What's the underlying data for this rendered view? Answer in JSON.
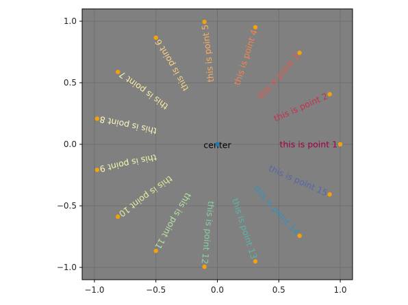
{
  "chart_data": {
    "type": "scatter",
    "xlim": [
      -1.1,
      1.1
    ],
    "ylim": [
      -1.1,
      1.1
    ],
    "grid": true,
    "background": "#808080",
    "point_color": "#f5a20a",
    "center_point_color": "#1f77b4",
    "x_ticks": [
      -1.0,
      -0.5,
      0.0,
      0.5,
      1.0
    ],
    "y_ticks": [
      -1.0,
      -0.5,
      0.0,
      0.5,
      1.0
    ],
    "x_tick_labels": [
      "−1.0",
      "−0.5",
      "0.0",
      "0.5",
      "1.0"
    ],
    "y_tick_labels": [
      "−1.0",
      "−0.5",
      "0.0",
      "0.5",
      "1.0"
    ],
    "center": {
      "x": 0,
      "y": 0,
      "label": "center",
      "color": "#000000"
    },
    "points": [
      {
        "x": 1.0,
        "y": 0.0,
        "label": "this is point 1",
        "color": "#9e0142"
      },
      {
        "x": 0.914,
        "y": 0.407,
        "label": "this is point 2",
        "color": "#c6304b"
      },
      {
        "x": 0.669,
        "y": 0.743,
        "label": "this is point 3",
        "color": "#e25a4c"
      },
      {
        "x": 0.309,
        "y": 0.951,
        "label": "this is point 4",
        "color": "#f3844e"
      },
      {
        "x": -0.105,
        "y": 0.995,
        "label": "this is point 5",
        "color": "#fbae62"
      },
      {
        "x": -0.5,
        "y": 0.866,
        "label": "this is point 6",
        "color": "#fdd384"
      },
      {
        "x": -0.809,
        "y": 0.588,
        "label": "this is point 7",
        "color": "#fdeea4"
      },
      {
        "x": -0.978,
        "y": 0.208,
        "label": "this is point 8",
        "color": "#fbf8c0"
      },
      {
        "x": -0.978,
        "y": -0.208,
        "label": "this is point 9",
        "color": "#f2f9b0"
      },
      {
        "x": -0.809,
        "y": -0.588,
        "label": "this is point 10",
        "color": "#dcf19c"
      },
      {
        "x": -0.5,
        "y": -0.866,
        "label": "this is point 11",
        "color": "#b6e2a2"
      },
      {
        "x": -0.105,
        "y": -0.995,
        "label": "this is point 12",
        "color": "#88cfa4"
      },
      {
        "x": 0.309,
        "y": -0.951,
        "label": "this is point 13",
        "color": "#5cb4a8"
      },
      {
        "x": 0.669,
        "y": -0.743,
        "label": "this is point 14",
        "color": "#3a8eb9"
      },
      {
        "x": 0.914,
        "y": -0.407,
        "label": "this is point 15",
        "color": "#5566ad"
      }
    ]
  }
}
